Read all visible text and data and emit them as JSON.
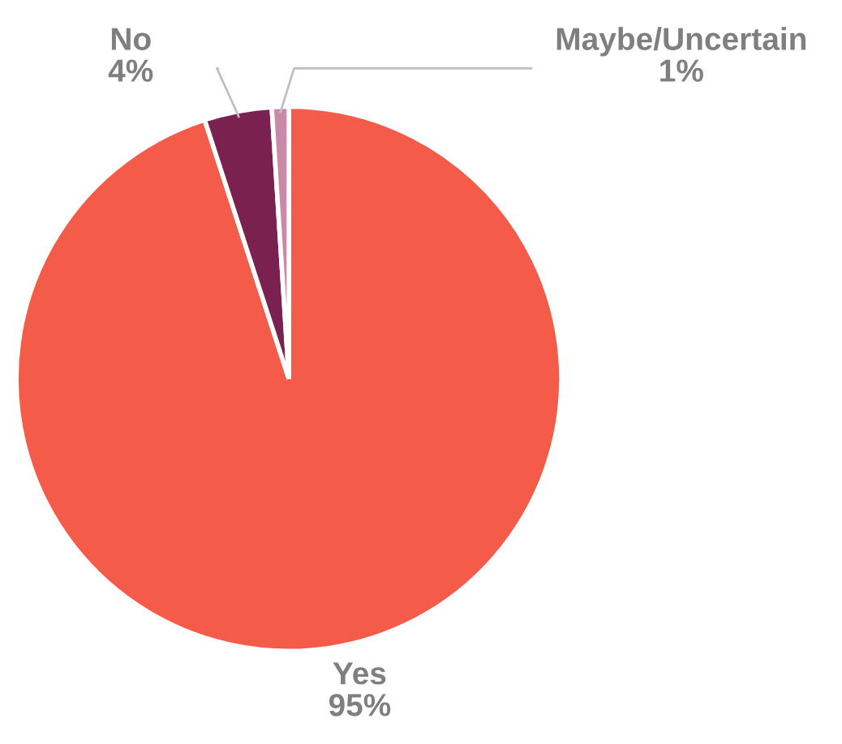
{
  "chart_data": {
    "type": "pie",
    "categories": [
      "Yes",
      "No",
      "Maybe/Uncertain"
    ],
    "values": [
      95,
      4,
      1
    ],
    "colors": [
      "#f45b48",
      "#7b2150",
      "#c98aa8"
    ],
    "value_labels": [
      "95%",
      "4%",
      "1%"
    ]
  }
}
